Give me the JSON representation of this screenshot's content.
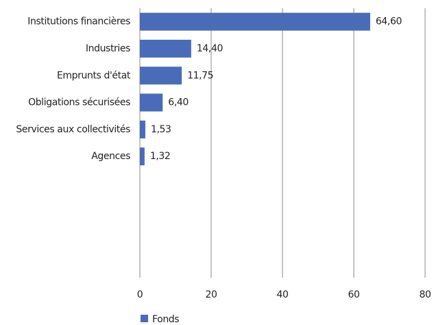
{
  "chart_data": {
    "type": "barh",
    "categories": [
      "Institutions financières",
      "Industries",
      "Emprunts d'état",
      "Obligations sécurisées",
      "Services aux collectivités",
      "Agences",
      null,
      null,
      null,
      null
    ],
    "series": [
      {
        "name": "Fonds",
        "color": "#4a6cb8",
        "values": [
          64.6,
          14.4,
          11.75,
          6.4,
          1.53,
          1.32,
          null,
          null,
          null,
          null
        ],
        "value_labels": [
          "64,60",
          "14,40",
          "11,75",
          "6,40",
          "1,53",
          "1,32",
          null,
          null,
          null,
          null
        ]
      }
    ],
    "xlim": [
      0,
      80
    ],
    "xticks": [
      0,
      20,
      40,
      60,
      80
    ],
    "grid": true,
    "legend": "bottom-left"
  }
}
